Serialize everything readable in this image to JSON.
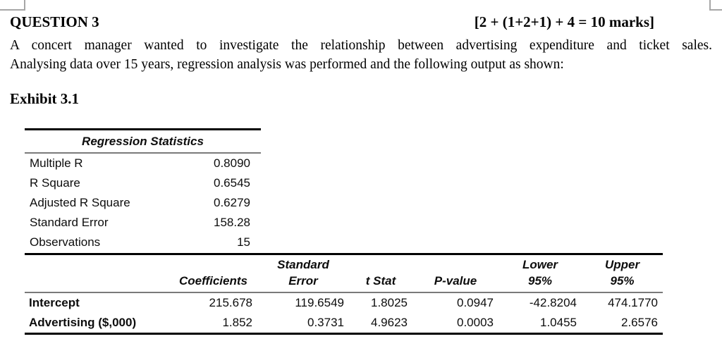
{
  "header": {
    "question_title": "QUESTION 3",
    "marks": "[2 + (1+2+1) + 4 = 10 marks]"
  },
  "body": {
    "paragraph_line1": "A concert manager wanted to investigate the relationship between advertising expenditure and ticket sales.",
    "paragraph_line2": "Analysing data over 15 years, regression analysis was performed and the following output as shown:",
    "exhibit_label": "Exhibit 3.1"
  },
  "regression_statistics": {
    "title": "Regression Statistics",
    "rows": [
      {
        "label": "Multiple R",
        "value": "0.8090"
      },
      {
        "label": "R Square",
        "value": "0.6545"
      },
      {
        "label": "Adjusted R Square",
        "value": "0.6279"
      },
      {
        "label": "Standard Error",
        "value": "158.28"
      },
      {
        "label": "Observations",
        "value": "15"
      }
    ]
  },
  "coefficients_table": {
    "headers": {
      "coefficients": "Coefficients",
      "standard_error_line1": "Standard",
      "standard_error_line2": "Error",
      "t_stat": "t Stat",
      "p_value": "P-value",
      "lower_line1": "Lower",
      "lower_line2": "95%",
      "upper_line1": "Upper",
      "upper_line2": "95%"
    },
    "rows": [
      {
        "label": "Intercept",
        "coefficient": "215.678",
        "standard_error": "119.6549",
        "t_stat": "1.8025",
        "p_value": "0.0947",
        "lower_95": "-42.8204",
        "upper_95": "474.1770"
      },
      {
        "label": "Advertising ($,000)",
        "coefficient": "1.852",
        "standard_error": "0.3731",
        "t_stat": "4.9623",
        "p_value": "0.0003",
        "lower_95": "1.0455",
        "upper_95": "2.6576"
      }
    ]
  },
  "colors": {
    "thick_border": "#000000",
    "thin_border": "#7a7a7a",
    "corner_mark": "#a6a6a6"
  }
}
